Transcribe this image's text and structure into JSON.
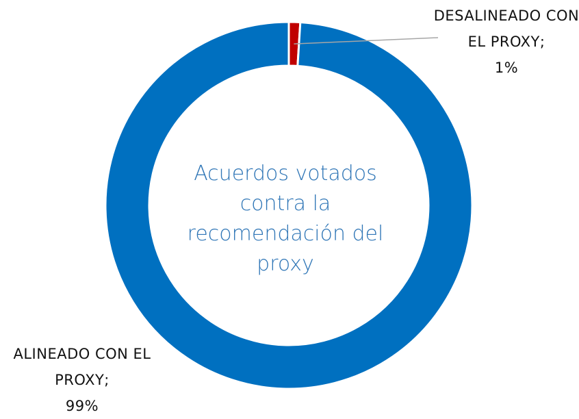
{
  "chart_data": {
    "type": "donut",
    "title": "Acuerdos votados contra la recomendación del proxy",
    "categories": [
      "DESALINEADO CON EL PROXY;",
      "ALINEADO CON EL PROXY;"
    ],
    "values": [
      1,
      99
    ],
    "value_labels": [
      "1%",
      "99%"
    ],
    "colors": [
      "#c00000",
      "#0070c0"
    ]
  }
}
